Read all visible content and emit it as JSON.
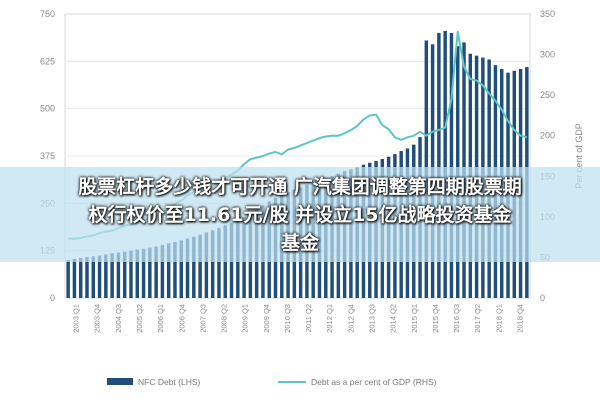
{
  "chart_data": {
    "type": "bar",
    "left_axis": {
      "title": "",
      "ticks": [
        0,
        125,
        250,
        375,
        500,
        625,
        750
      ],
      "ylim": [
        0,
        750
      ]
    },
    "right_axis": {
      "title": "Per cent of GDP",
      "ticks": [
        0,
        50,
        100,
        150,
        200,
        250,
        300,
        350
      ],
      "ylim": [
        0,
        350
      ]
    },
    "x_tick_labels": [
      "2003 Q1",
      "2003 Q4",
      "2004 Q3",
      "2005 Q2",
      "2006 Q1",
      "2006 Q4",
      "2007 Q3",
      "2008 Q2",
      "2009 Q1",
      "2009 Q4",
      "2010 Q3",
      "2011 Q2",
      "2012 Q1",
      "2012 Q4",
      "2013 Q3",
      "2014 Q2",
      "2015 Q1",
      "2015 Q4",
      "2016 Q3",
      "2017 Q2",
      "2018 Q1",
      "2018 Q4"
    ],
    "series": [
      {
        "name": "NFC Debt (LHS)",
        "type": "bar",
        "axis": "left",
        "color": "#1f4e79",
        "values": [
          100,
          103,
          106,
          108,
          110,
          112,
          115,
          118,
          120,
          122,
          125,
          128,
          130,
          133,
          136,
          140,
          144,
          148,
          152,
          157,
          162,
          167,
          173,
          179,
          185,
          192,
          199,
          207,
          215,
          225,
          235,
          245,
          255,
          265,
          272,
          280,
          287,
          292,
          300,
          305,
          311,
          316,
          322,
          328,
          335,
          340,
          345,
          352,
          357,
          362,
          367,
          373,
          380,
          388,
          395,
          405,
          425,
          680,
          670,
          700,
          705,
          700,
          665,
          675,
          645,
          640,
          635,
          630,
          615,
          605,
          595,
          600,
          605,
          610
        ]
      },
      {
        "name": "Debt as a per cent of GDP (RHS)",
        "type": "line",
        "axis": "right",
        "color": "#5fc4c4",
        "values": [
          73,
          73,
          74,
          76,
          77,
          80,
          82,
          83,
          86,
          89,
          91,
          94,
          96,
          99,
          102,
          105,
          110,
          116,
          120,
          126,
          131,
          135,
          139,
          142,
          145,
          148,
          152,
          157,
          165,
          171,
          173,
          175,
          178,
          180,
          177,
          183,
          185,
          188,
          191,
          194,
          197,
          199,
          200,
          200,
          203,
          207,
          212,
          220,
          225,
          226,
          213,
          208,
          198,
          195,
          198,
          200,
          205,
          200,
          205,
          207,
          210,
          245,
          328,
          285,
          270,
          268,
          262,
          252,
          243,
          232,
          218,
          207,
          200,
          198
        ]
      }
    ],
    "legend": {
      "placement": "bottom"
    }
  },
  "overlay": {
    "line1": "股票杠杆多少钱才可开通 广汽集团调整第四期股票期",
    "line2": "权行权价至11.61元/股 并设立15亿战略投资基金",
    "line3": "基金"
  }
}
